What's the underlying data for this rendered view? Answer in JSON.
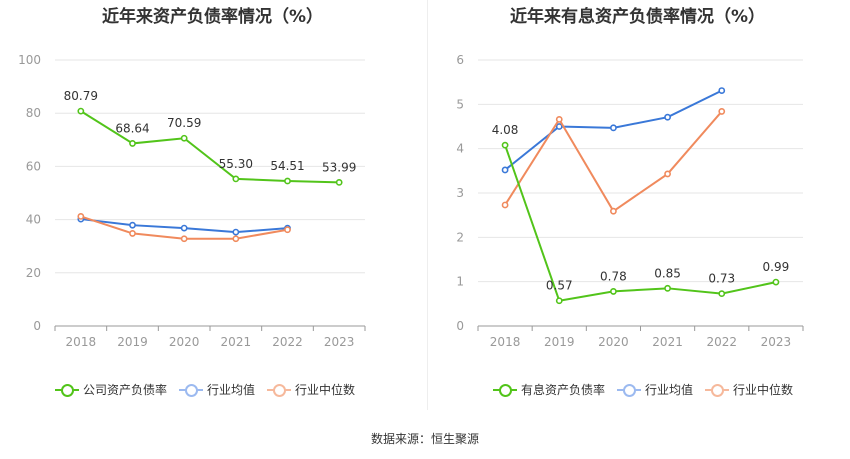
{
  "source_text": "数据来源：恒生聚源",
  "colors": {
    "company": "#52c41a",
    "industry_avg": "#3a78d8",
    "industry_median": "#f08a5d"
  },
  "chart_data": [
    {
      "type": "line",
      "title": "近年来资产负债率情况（%）",
      "categories": [
        "2018",
        "2019",
        "2020",
        "2021",
        "2022",
        "2023"
      ],
      "ylim": [
        0,
        100
      ],
      "yticks": [
        0,
        20,
        40,
        60,
        80,
        100
      ],
      "grid": true,
      "legend_position": "bottom",
      "series": [
        {
          "name": "公司资产负债率",
          "color": "#52c41a",
          "values": [
            80.79,
            68.64,
            70.59,
            55.3,
            54.51,
            53.99
          ],
          "labels": [
            "80.79",
            "68.64",
            "70.59",
            "55.30",
            "54.51",
            "53.99"
          ]
        },
        {
          "name": "行业均值",
          "color": "#3a78d8",
          "values": [
            40.2,
            37.9,
            36.8,
            35.3,
            36.8,
            null
          ]
        },
        {
          "name": "行业中位数",
          "color": "#f08a5d",
          "values": [
            41.2,
            34.8,
            32.8,
            32.8,
            36.2,
            null
          ]
        }
      ]
    },
    {
      "type": "line",
      "title": "近年来有息资产负债率情况（%）",
      "categories": [
        "2018",
        "2019",
        "2020",
        "2021",
        "2022",
        "2023"
      ],
      "ylim": [
        0,
        6
      ],
      "yticks": [
        0,
        1,
        2,
        3,
        4,
        5,
        6
      ],
      "grid": true,
      "legend_position": "bottom",
      "series": [
        {
          "name": "有息资产负债率",
          "color": "#52c41a",
          "values": [
            4.08,
            0.57,
            0.78,
            0.85,
            0.73,
            0.99
          ],
          "labels": [
            "4.08",
            "0.57",
            "0.78",
            "0.85",
            "0.73",
            "0.99"
          ]
        },
        {
          "name": "行业均值",
          "color": "#3a78d8",
          "values": [
            3.52,
            4.5,
            4.47,
            4.71,
            5.31,
            null
          ]
        },
        {
          "name": "行业中位数",
          "color": "#f08a5d",
          "values": [
            2.73,
            4.66,
            2.59,
            3.43,
            4.84,
            null
          ]
        }
      ]
    }
  ]
}
